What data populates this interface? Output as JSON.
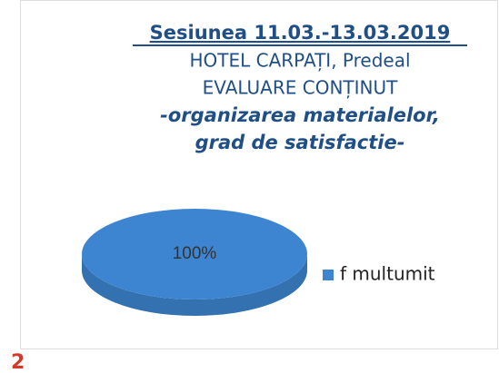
{
  "page_number": "2",
  "chart_data": {
    "type": "pie",
    "title": "Sesiunea 11.03.-13.03.2019",
    "subtitle": [
      "HOTEL CARPAȚI, Predeal",
      "EVALUARE CONȚINUT"
    ],
    "annotations": [
      "-organizarea materialelor,",
      "grad de satisfactie-"
    ],
    "categories": [
      "f multumit"
    ],
    "values": [
      100
    ],
    "value_labels": [
      "100%"
    ],
    "colors": [
      "#3d85d0"
    ],
    "legend": "right"
  }
}
